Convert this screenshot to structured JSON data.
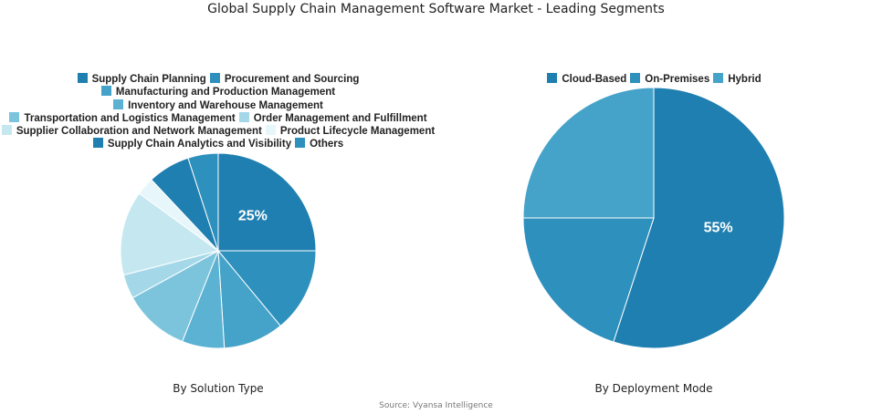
{
  "title": "Global Supply Chain Management Software Market - Leading Segments",
  "source": "Source: Vyansa Intelligence",
  "chart_data": [
    {
      "type": "pie",
      "title": "By Solution Type",
      "legend_rows": [
        [
          0,
          1
        ],
        [
          2
        ],
        [
          3
        ],
        [
          4,
          5
        ],
        [
          6,
          7
        ],
        [
          8,
          9
        ]
      ],
      "slices": [
        {
          "label": "Supply Chain Planning",
          "value": 25,
          "color": "#1f7fb0",
          "show_label": true,
          "display": "25%"
        },
        {
          "label": "Procurement and Sourcing",
          "value": 14,
          "color": "#2e90bd",
          "show_label": false
        },
        {
          "label": "Manufacturing and Production Management",
          "value": 10,
          "color": "#45a3c9",
          "show_label": false
        },
        {
          "label": "Inventory and Warehouse Management",
          "value": 7,
          "color": "#5cb2d3",
          "show_label": false
        },
        {
          "label": "Transportation and Logistics Management",
          "value": 11,
          "color": "#7cc4dc",
          "show_label": false
        },
        {
          "label": "Order Management and Fulfillment",
          "value": 4,
          "color": "#a4d8e8",
          "show_label": false
        },
        {
          "label": "Supplier Collaboration and Network Management",
          "value": 14,
          "color": "#c5e8f0",
          "show_label": false
        },
        {
          "label": "Product Lifecycle Management",
          "value": 3,
          "color": "#e6f6fa",
          "show_label": false
        },
        {
          "label": "Supply Chain Analytics and Visibility",
          "value": 7,
          "color": "#1f7fb0",
          "show_label": false
        },
        {
          "label": "Others",
          "value": 5,
          "color": "#2e90bd",
          "show_label": false
        }
      ]
    },
    {
      "type": "pie",
      "title": "By Deployment Mode",
      "legend_rows": [
        [
          0,
          1,
          2
        ]
      ],
      "slices": [
        {
          "label": "Cloud-Based",
          "value": 55,
          "color": "#1f7fb0",
          "show_label": true,
          "display": "55%"
        },
        {
          "label": "On-Premises",
          "value": 20,
          "color": "#2e90bd",
          "show_label": false
        },
        {
          "label": "Hybrid",
          "value": 25,
          "color": "#45a3c9",
          "show_label": false
        }
      ]
    }
  ]
}
